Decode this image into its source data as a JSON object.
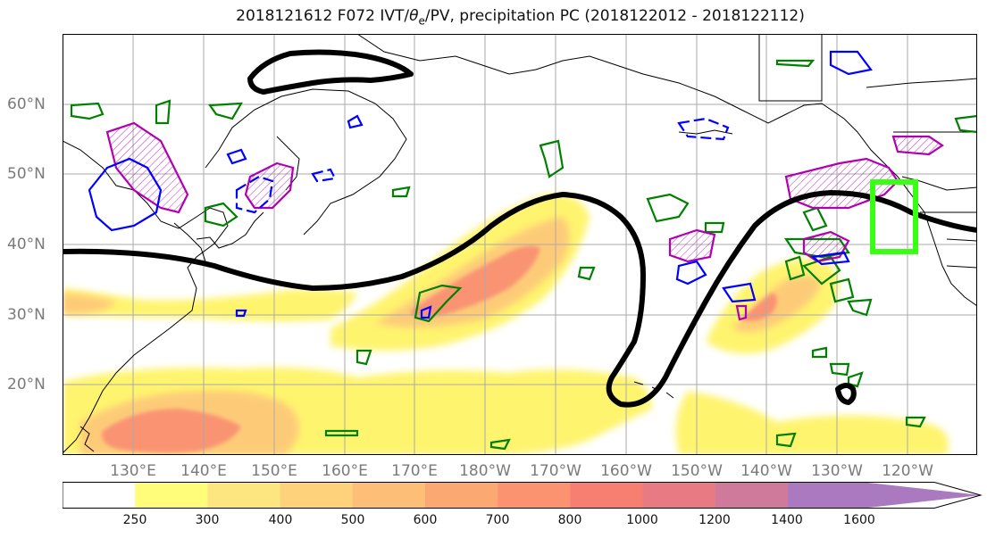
{
  "title": {
    "prefix": "2018121612 F072 IVT/",
    "theta": "θ",
    "theta_sub": "e",
    "suffix": "/PV, precipitation PC (2018122012 - 2018122112)"
  },
  "lat_labels": [
    "60°N",
    "50°N",
    "40°N",
    "30°N",
    "20°N"
  ],
  "lon_labels": [
    "130°E",
    "140°E",
    "150°E",
    "160°E",
    "170°E",
    "180°W",
    "170°W",
    "160°W",
    "150°W",
    "140°W",
    "130°W",
    "120°W"
  ],
  "colorbar": {
    "ticks": [
      "250",
      "300",
      "400",
      "500",
      "600",
      "700",
      "800",
      "1000",
      "1200",
      "1400",
      "1600"
    ],
    "colors": [
      "#ffffff",
      "#fffd7a",
      "#fde680",
      "#fdd27a",
      "#fdbf78",
      "#fca872",
      "#fc9370",
      "#f67f72",
      "#e87a84",
      "#cf7a9a",
      "#aa79c0"
    ],
    "extend": "max"
  },
  "colors": {
    "ivt_low": "#fff46e",
    "ivt_mid": "#fdc77a",
    "ivt_high": "#f98a72",
    "pv_contour": "#000000",
    "theta_contour": "#0000ff",
    "precip_pos": "#008000",
    "precip_neg": "#b000b0",
    "box": "#39ff14",
    "grid": "#aaaaaa",
    "coast": "#000000"
  },
  "map": {
    "lat_range": [
      10,
      70
    ],
    "lon_range": [
      120,
      250
    ],
    "grid": true,
    "highlight_box": "40N-49N, 125W-120W"
  }
}
